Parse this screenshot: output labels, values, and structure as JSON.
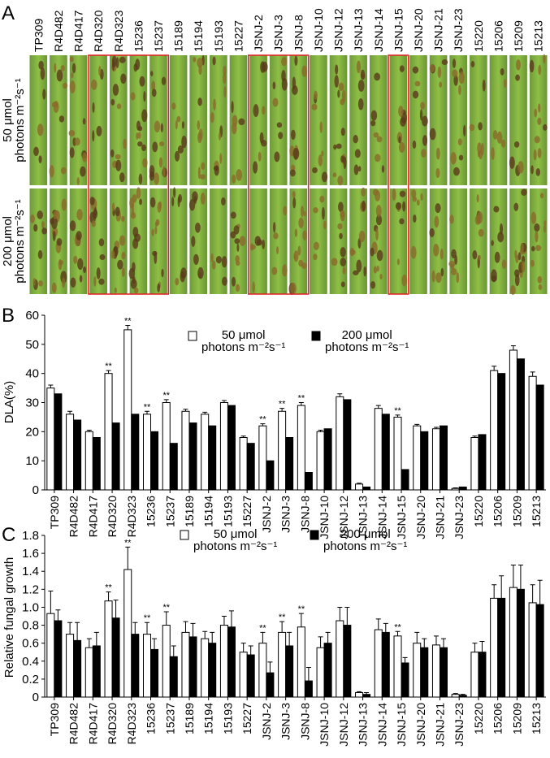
{
  "panel_labels": [
    "A",
    "B",
    "C"
  ],
  "photo_panel": {
    "samples": [
      "TP309",
      "R4D482",
      "R4D417",
      "R4D320",
      "R4D323",
      "15236",
      "15237",
      "15189",
      "15194",
      "15193",
      "15227",
      "JSNJ-2",
      "JSNJ-3",
      "JSNJ-8",
      "JSNJ-10",
      "JSNJ-12",
      "JSNJ-13",
      "JSNJ-14",
      "JSNJ-15",
      "JSNJ-20",
      "JSNJ-21",
      "JSNJ-23",
      "15220",
      "15206",
      "15209",
      "15213"
    ],
    "rows": [
      "50 μmol\nphotons m⁻²s⁻¹",
      "200 μmol\nphotons m⁻²s⁻¹"
    ]
  },
  "chart_data": [
    {
      "type": "bar",
      "y_label": "DLA(%)",
      "categories": [
        "TP309",
        "R4D482",
        "R4D417",
        "R4D320",
        "R4D323",
        "15236",
        "15237",
        "15189",
        "15194",
        "15193",
        "15227",
        "JSNJ-2",
        "JSNJ-3",
        "JSNJ-8",
        "JSNJ-10",
        "JSNJ-12",
        "JSNJ-13",
        "JSNJ-14",
        "JSNJ-15",
        "JSNJ-20",
        "JSNJ-21",
        "JSNJ-23",
        "15220",
        "15206",
        "15209",
        "15213"
      ],
      "series": [
        {
          "name": "50 μmol\nphotons m⁻²s⁻¹",
          "color": "#ffffff",
          "values": [
            35,
            26,
            20,
            40,
            55,
            26,
            30,
            27,
            26,
            30,
            18,
            22,
            27,
            29,
            20,
            32,
            2,
            28,
            25,
            22,
            21,
            0.5,
            18,
            41,
            48,
            39
          ],
          "errors": [
            1,
            1,
            0.5,
            1,
            1.5,
            1,
            1,
            0.7,
            0.7,
            0.7,
            0.5,
            0.7,
            1,
            1,
            0.5,
            1,
            0.3,
            1,
            0.7,
            0.5,
            0.5,
            0.2,
            0.5,
            1.5,
            1.5,
            1.5
          ],
          "significance": [
            null,
            null,
            null,
            "**",
            "**",
            "**",
            "**",
            null,
            null,
            null,
            null,
            "**",
            "**",
            "**",
            null,
            null,
            null,
            null,
            "**",
            null,
            null,
            null,
            null,
            null,
            null,
            null
          ]
        },
        {
          "name": "200 μmol\nphotons m⁻²s⁻¹",
          "color": "#000000",
          "values": [
            33,
            24,
            18,
            23,
            26,
            20,
            16,
            23,
            22,
            29,
            16,
            10,
            18,
            6,
            21,
            31,
            1,
            26,
            7,
            20,
            22,
            1,
            19,
            40,
            45,
            36
          ]
        }
      ],
      "ylim": [
        0,
        60
      ],
      "yticks": [
        0,
        10,
        20,
        30,
        40,
        50,
        60
      ]
    },
    {
      "type": "bar",
      "y_label": "Relative fungal growth",
      "categories": [
        "TP309",
        "R4D482",
        "R4D417",
        "R4D320",
        "R4D323",
        "15236",
        "15237",
        "15189",
        "15194",
        "15193",
        "15227",
        "JSNJ-2",
        "JSNJ-3",
        "JSNJ-8",
        "JSNJ-10",
        "JSNJ-12",
        "JSNJ-13",
        "JSNJ-14",
        "JSNJ-15",
        "JSNJ-20",
        "JSNJ-21",
        "JSNJ-23",
        "15220",
        "15206",
        "15209",
        "15213"
      ],
      "series": [
        {
          "name": "50 μmol\nphotons m⁻²s⁻¹",
          "color": "#ffffff",
          "values": [
            0.93,
            0.7,
            0.55,
            1.07,
            1.42,
            0.7,
            0.8,
            0.72,
            0.65,
            0.8,
            0.5,
            0.6,
            0.72,
            0.78,
            0.55,
            0.85,
            0.05,
            0.75,
            0.68,
            0.6,
            0.58,
            0.03,
            0.5,
            1.1,
            1.22,
            1.05
          ],
          "errors": [
            0.25,
            0.13,
            0.1,
            0.1,
            0.25,
            0.13,
            0.15,
            0.12,
            0.08,
            0.1,
            0.1,
            0.12,
            0.12,
            0.15,
            0.12,
            0.15,
            0.01,
            0.12,
            0.05,
            0.12,
            0.1,
            0.01,
            0.1,
            0.15,
            0.25,
            0.2
          ],
          "significance": [
            null,
            null,
            null,
            "**",
            "**",
            "**",
            "**",
            null,
            null,
            null,
            null,
            "**",
            "**",
            "**",
            null,
            null,
            null,
            null,
            "**",
            null,
            null,
            null,
            null,
            null,
            null,
            null
          ]
        },
        {
          "name": "200 μmol\nphotons m⁻²s⁻¹",
          "color": "#000000",
          "values": [
            0.85,
            0.63,
            0.57,
            0.88,
            0.7,
            0.53,
            0.45,
            0.67,
            0.6,
            0.78,
            0.47,
            0.27,
            0.57,
            0.18,
            0.6,
            0.8,
            0.03,
            0.72,
            0.38,
            0.55,
            0.55,
            0.02,
            0.5,
            1.1,
            1.2,
            1.03
          ],
          "errors": [
            0.12,
            0.2,
            0.15,
            0.2,
            0.13,
            0.12,
            0.12,
            0.15,
            0.12,
            0.18,
            0.1,
            0.12,
            0.15,
            0.15,
            0.12,
            0.2,
            0.02,
            0.1,
            0.06,
            0.1,
            0.1,
            0.01,
            0.12,
            0.25,
            0.27,
            0.27
          ]
        }
      ],
      "ylim": [
        0,
        1.8
      ],
      "yticks": [
        0,
        0.2,
        0.4,
        0.6,
        0.8,
        {
          "value": 1,
          "label": "1.0"
        },
        1.2,
        1.4,
        1.6,
        1.8
      ]
    }
  ]
}
